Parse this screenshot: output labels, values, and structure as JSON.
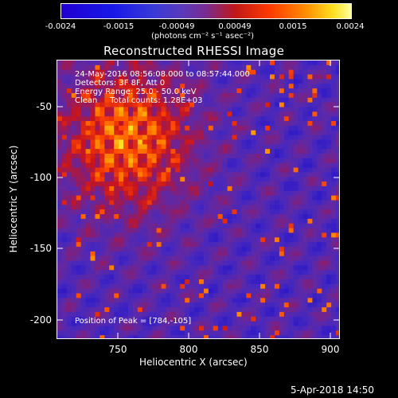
{
  "colorbar": {
    "ticks": [
      "-0.0024",
      "-0.0015",
      "-0.00049",
      "0.00049",
      "0.0015",
      "0.0024"
    ],
    "units": "(photons cm⁻² s⁻¹ asec⁻²)"
  },
  "plot": {
    "title": "Reconstructed RHESSI Image",
    "annotations": {
      "time_range": "24-May-2016 08:56:08.000 to 08:57:44.000",
      "detectors": "Detectors: 3F 8F, Att 0",
      "energy_range": "Energy Range: 25.0 - 50.0 keV",
      "method": "Clean     Total counts: 1.28E+03",
      "peak": "Position of Peak = [784,-105]"
    },
    "x_axis": {
      "label": "Heliocentric X (arcsec)",
      "ticks": [
        "750",
        "800",
        "850",
        "900"
      ]
    },
    "y_axis": {
      "label": "Heliocentric Y (arcsec)",
      "ticks": [
        "-50",
        "-100",
        "-150",
        "-200"
      ]
    }
  },
  "footer": {
    "timestamp": "5-Apr-2018 14:50"
  }
}
